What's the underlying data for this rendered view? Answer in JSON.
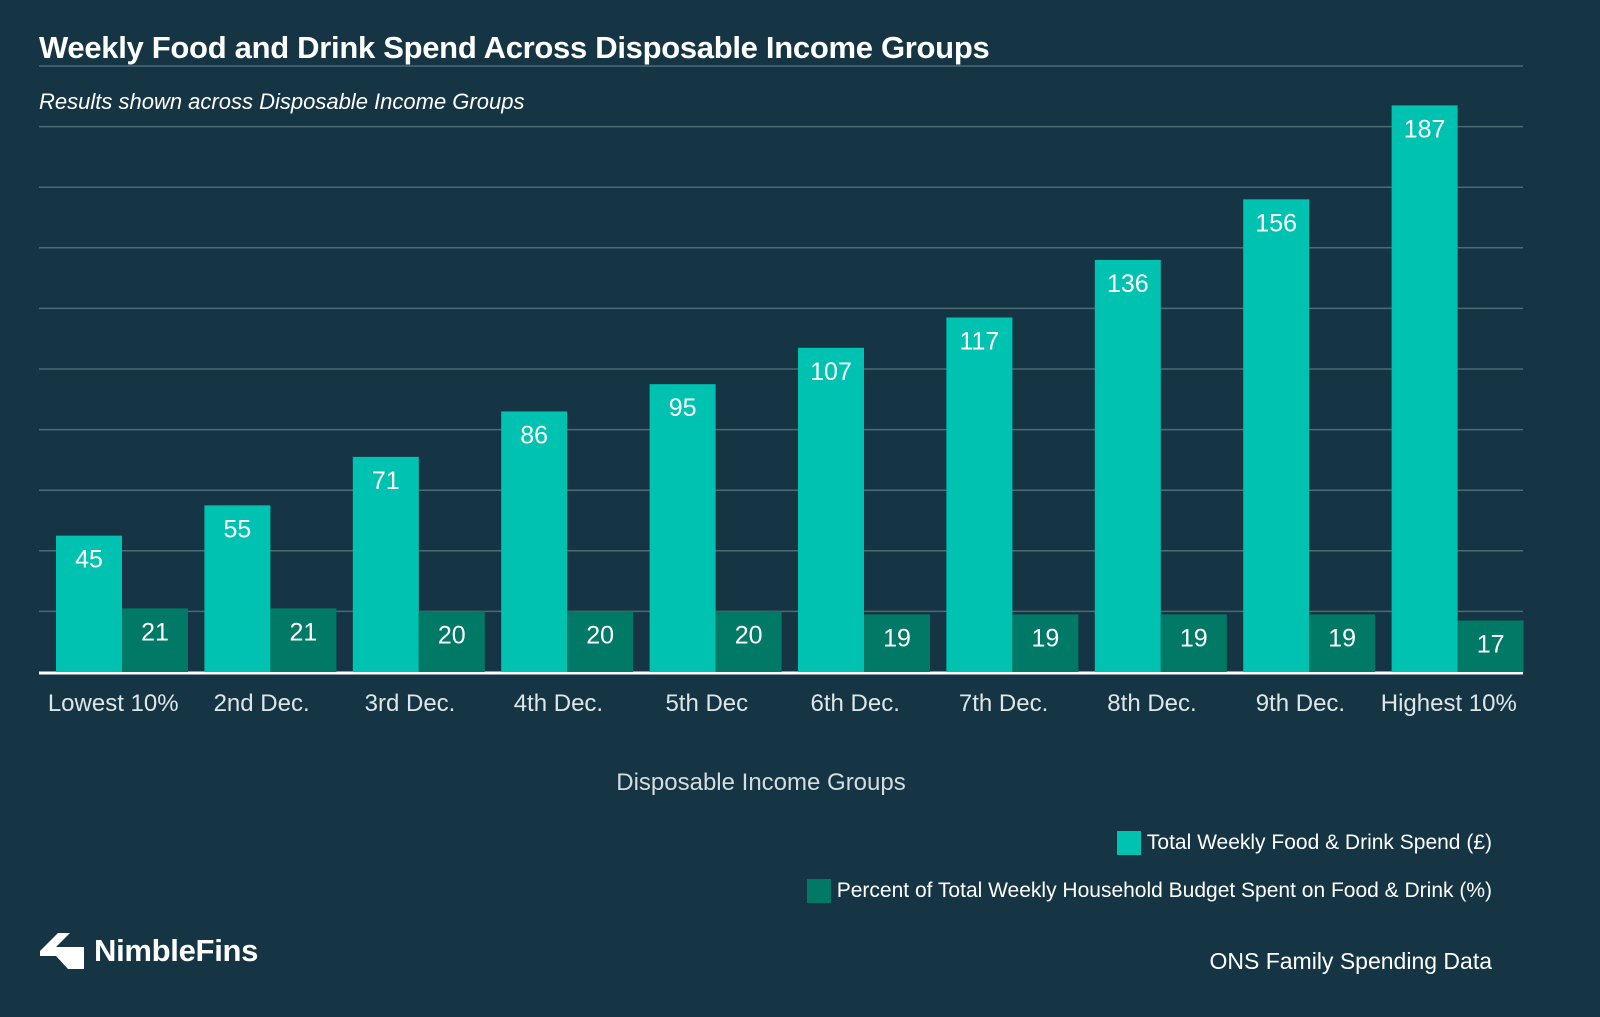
{
  "chart_data": {
    "type": "bar",
    "title": "Weekly Food and Drink Spend Across Disposable Income Groups",
    "subtitle": "Results shown across Disposable Income Groups",
    "xlabel": "Disposable Income Groups",
    "ylabel": "",
    "ylim": [
      0,
      200
    ],
    "grid": true,
    "legend_position": "bottom-right",
    "categories": [
      "Lowest 10%",
      "2nd Dec.",
      "3rd Dec.",
      "4th Dec.",
      "5th Dec",
      "6th Dec.",
      "7th Dec.",
      "8th Dec.",
      "9th Dec.",
      "Highest 10%"
    ],
    "series": [
      {
        "name": "Total Weekly Food & Drink Spend (£)",
        "color": "#00c2b0",
        "values": [
          45,
          55,
          71,
          86,
          95,
          107,
          117,
          136,
          156,
          187
        ]
      },
      {
        "name": "Percent of Total Weekly Household Budget Spent on Food & Drink (%)",
        "color": "#007a66",
        "values": [
          21,
          21,
          20,
          20,
          20,
          19,
          19,
          19,
          19,
          17
        ]
      }
    ]
  },
  "branding": {
    "logo_text": "NimbleFins",
    "source": "ONS Family Spending Data"
  },
  "colors": {
    "background": "#153544",
    "gridline": "#4e6a75",
    "axis": "#ffffff",
    "tick_label": "#dfe6e8"
  }
}
